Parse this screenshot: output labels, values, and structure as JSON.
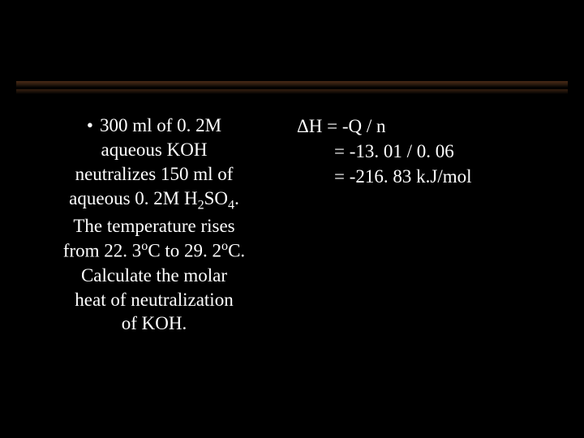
{
  "slide": {
    "background_color": "#000000",
    "text_color": "#ffffff",
    "font_family": "Times New Roman",
    "gradient_bar_color_top": "#4a2a16",
    "gradient_bar_color_bottom": "#000000",
    "left": {
      "bullet": "•",
      "line1_a": "300 ml of 0. 2M",
      "line2": "aqueous KOH",
      "line3": "neutralizes 150 ml of",
      "line4_a": "aqueous 0. 2M H",
      "line4_sub": "2",
      "line4_b": "SO",
      "line4_sub2": "4",
      "line4_c": ".",
      "line5": "The temperature rises",
      "line6_a": "from 22. 3",
      "line6_sup": "o",
      "line6_b": "C to 29. 2",
      "line6_sup2": "o",
      "line6_c": "C.",
      "line7": "Calculate the molar",
      "line8": "heat of neutralization",
      "line9": "of KOH."
    },
    "right": {
      "eq1_delta": "Δ",
      "eq1": "H = -Q / n",
      "eq2": "= -13. 01 / 0. 06",
      "eq3": "= -216. 83 k.J/mol"
    }
  }
}
